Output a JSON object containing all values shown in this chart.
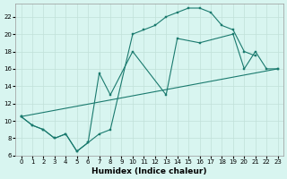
{
  "background_color": "#d8f5f0",
  "grid_color": "#c0e0d8",
  "line_color": "#1a7a6e",
  "marker_color": "#1a7a6e",
  "curve1_x": [
    0,
    1,
    2,
    3,
    4,
    5,
    6,
    7,
    8,
    10,
    11,
    12,
    13,
    14,
    15,
    16,
    17,
    18,
    19,
    20,
    21
  ],
  "curve1_y": [
    10.5,
    9.5,
    9.0,
    8.0,
    8.5,
    6.5,
    7.5,
    8.5,
    9.0,
    20.0,
    20.5,
    21.0,
    22.0,
    22.5,
    23.0,
    23.0,
    22.5,
    21.0,
    20.5,
    18.0,
    17.5
  ],
  "curve2_x": [
    0,
    1,
    2,
    3,
    4,
    5,
    6,
    7,
    8,
    10,
    13,
    14,
    16,
    19,
    20,
    21,
    22,
    23
  ],
  "curve2_y": [
    10.5,
    9.5,
    9.0,
    8.0,
    8.5,
    6.5,
    7.5,
    15.5,
    13.0,
    18.0,
    13.0,
    19.5,
    19.0,
    20.0,
    16.0,
    18.0,
    16.0,
    16.0
  ],
  "curve3_x": [
    0,
    23
  ],
  "curve3_y": [
    10.5,
    16.0
  ],
  "xlim": [
    -0.5,
    23.5
  ],
  "ylim": [
    6,
    23.5
  ],
  "xticks": [
    0,
    1,
    2,
    3,
    4,
    5,
    6,
    7,
    8,
    9,
    10,
    11,
    12,
    13,
    14,
    15,
    16,
    17,
    18,
    19,
    20,
    21,
    22,
    23
  ],
  "yticks": [
    6,
    8,
    10,
    12,
    14,
    16,
    18,
    20,
    22
  ],
  "xlabel": "Humidex (Indice chaleur)",
  "xlabel_fontsize": 6.5,
  "tick_fontsize": 5.0
}
